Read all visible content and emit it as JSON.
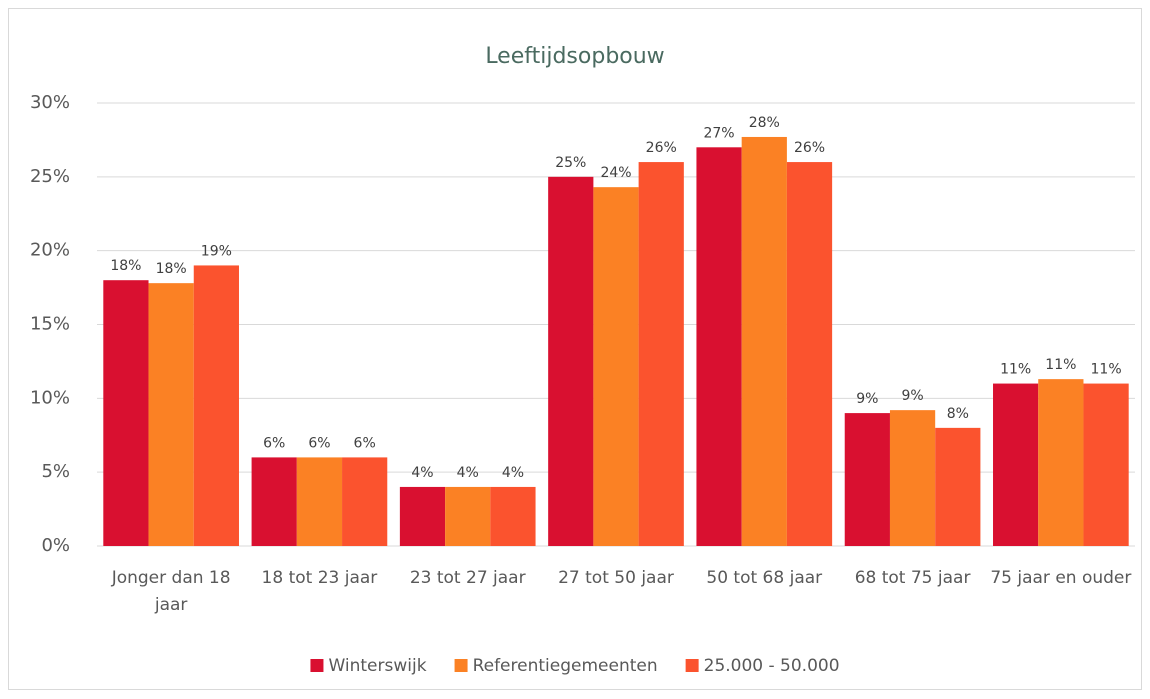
{
  "chart_data": {
    "type": "bar",
    "title": "Leeftijdsopbouw",
    "categories": [
      "Jonger dan 18 jaar",
      "18 tot 23 jaar",
      "23 tot 27 jaar",
      "27 tot 50 jaar",
      "50 tot 68 jaar",
      "68 tot 75 jaar",
      "75 jaar en ouder"
    ],
    "series": [
      {
        "name": "Winterswijk",
        "color": "#d91030",
        "values": [
          18,
          6,
          4,
          25,
          27,
          9,
          11
        ],
        "value_labels": [
          "18%",
          "6%",
          "4%",
          "25%",
          "27%",
          "9%",
          "11%"
        ]
      },
      {
        "name": "Referentiegemeenten",
        "color": "#fb8124",
        "values": [
          17.8,
          6,
          4,
          24.3,
          27.7,
          9.2,
          11.3
        ],
        "value_labels": [
          "18%",
          "6%",
          "4%",
          "24%",
          "28%",
          "9%",
          "11%"
        ]
      },
      {
        "name": "25.000 - 50.000",
        "color": "#fb532e",
        "values": [
          19,
          6,
          4,
          26,
          26,
          8,
          11
        ],
        "value_labels": [
          "19%",
          "6%",
          "4%",
          "26%",
          "26%",
          "8%",
          "11%"
        ]
      }
    ],
    "ylim": [
      0,
      30
    ],
    "yticks": [
      {
        "value": 0,
        "label": "0%"
      },
      {
        "value": 5,
        "label": "5%"
      },
      {
        "value": 10,
        "label": "10%"
      },
      {
        "value": 15,
        "label": "15%"
      },
      {
        "value": 20,
        "label": "20%"
      },
      {
        "value": 25,
        "label": "25%"
      },
      {
        "value": 30,
        "label": "30%"
      }
    ],
    "grid": true,
    "legend": "bottom"
  }
}
